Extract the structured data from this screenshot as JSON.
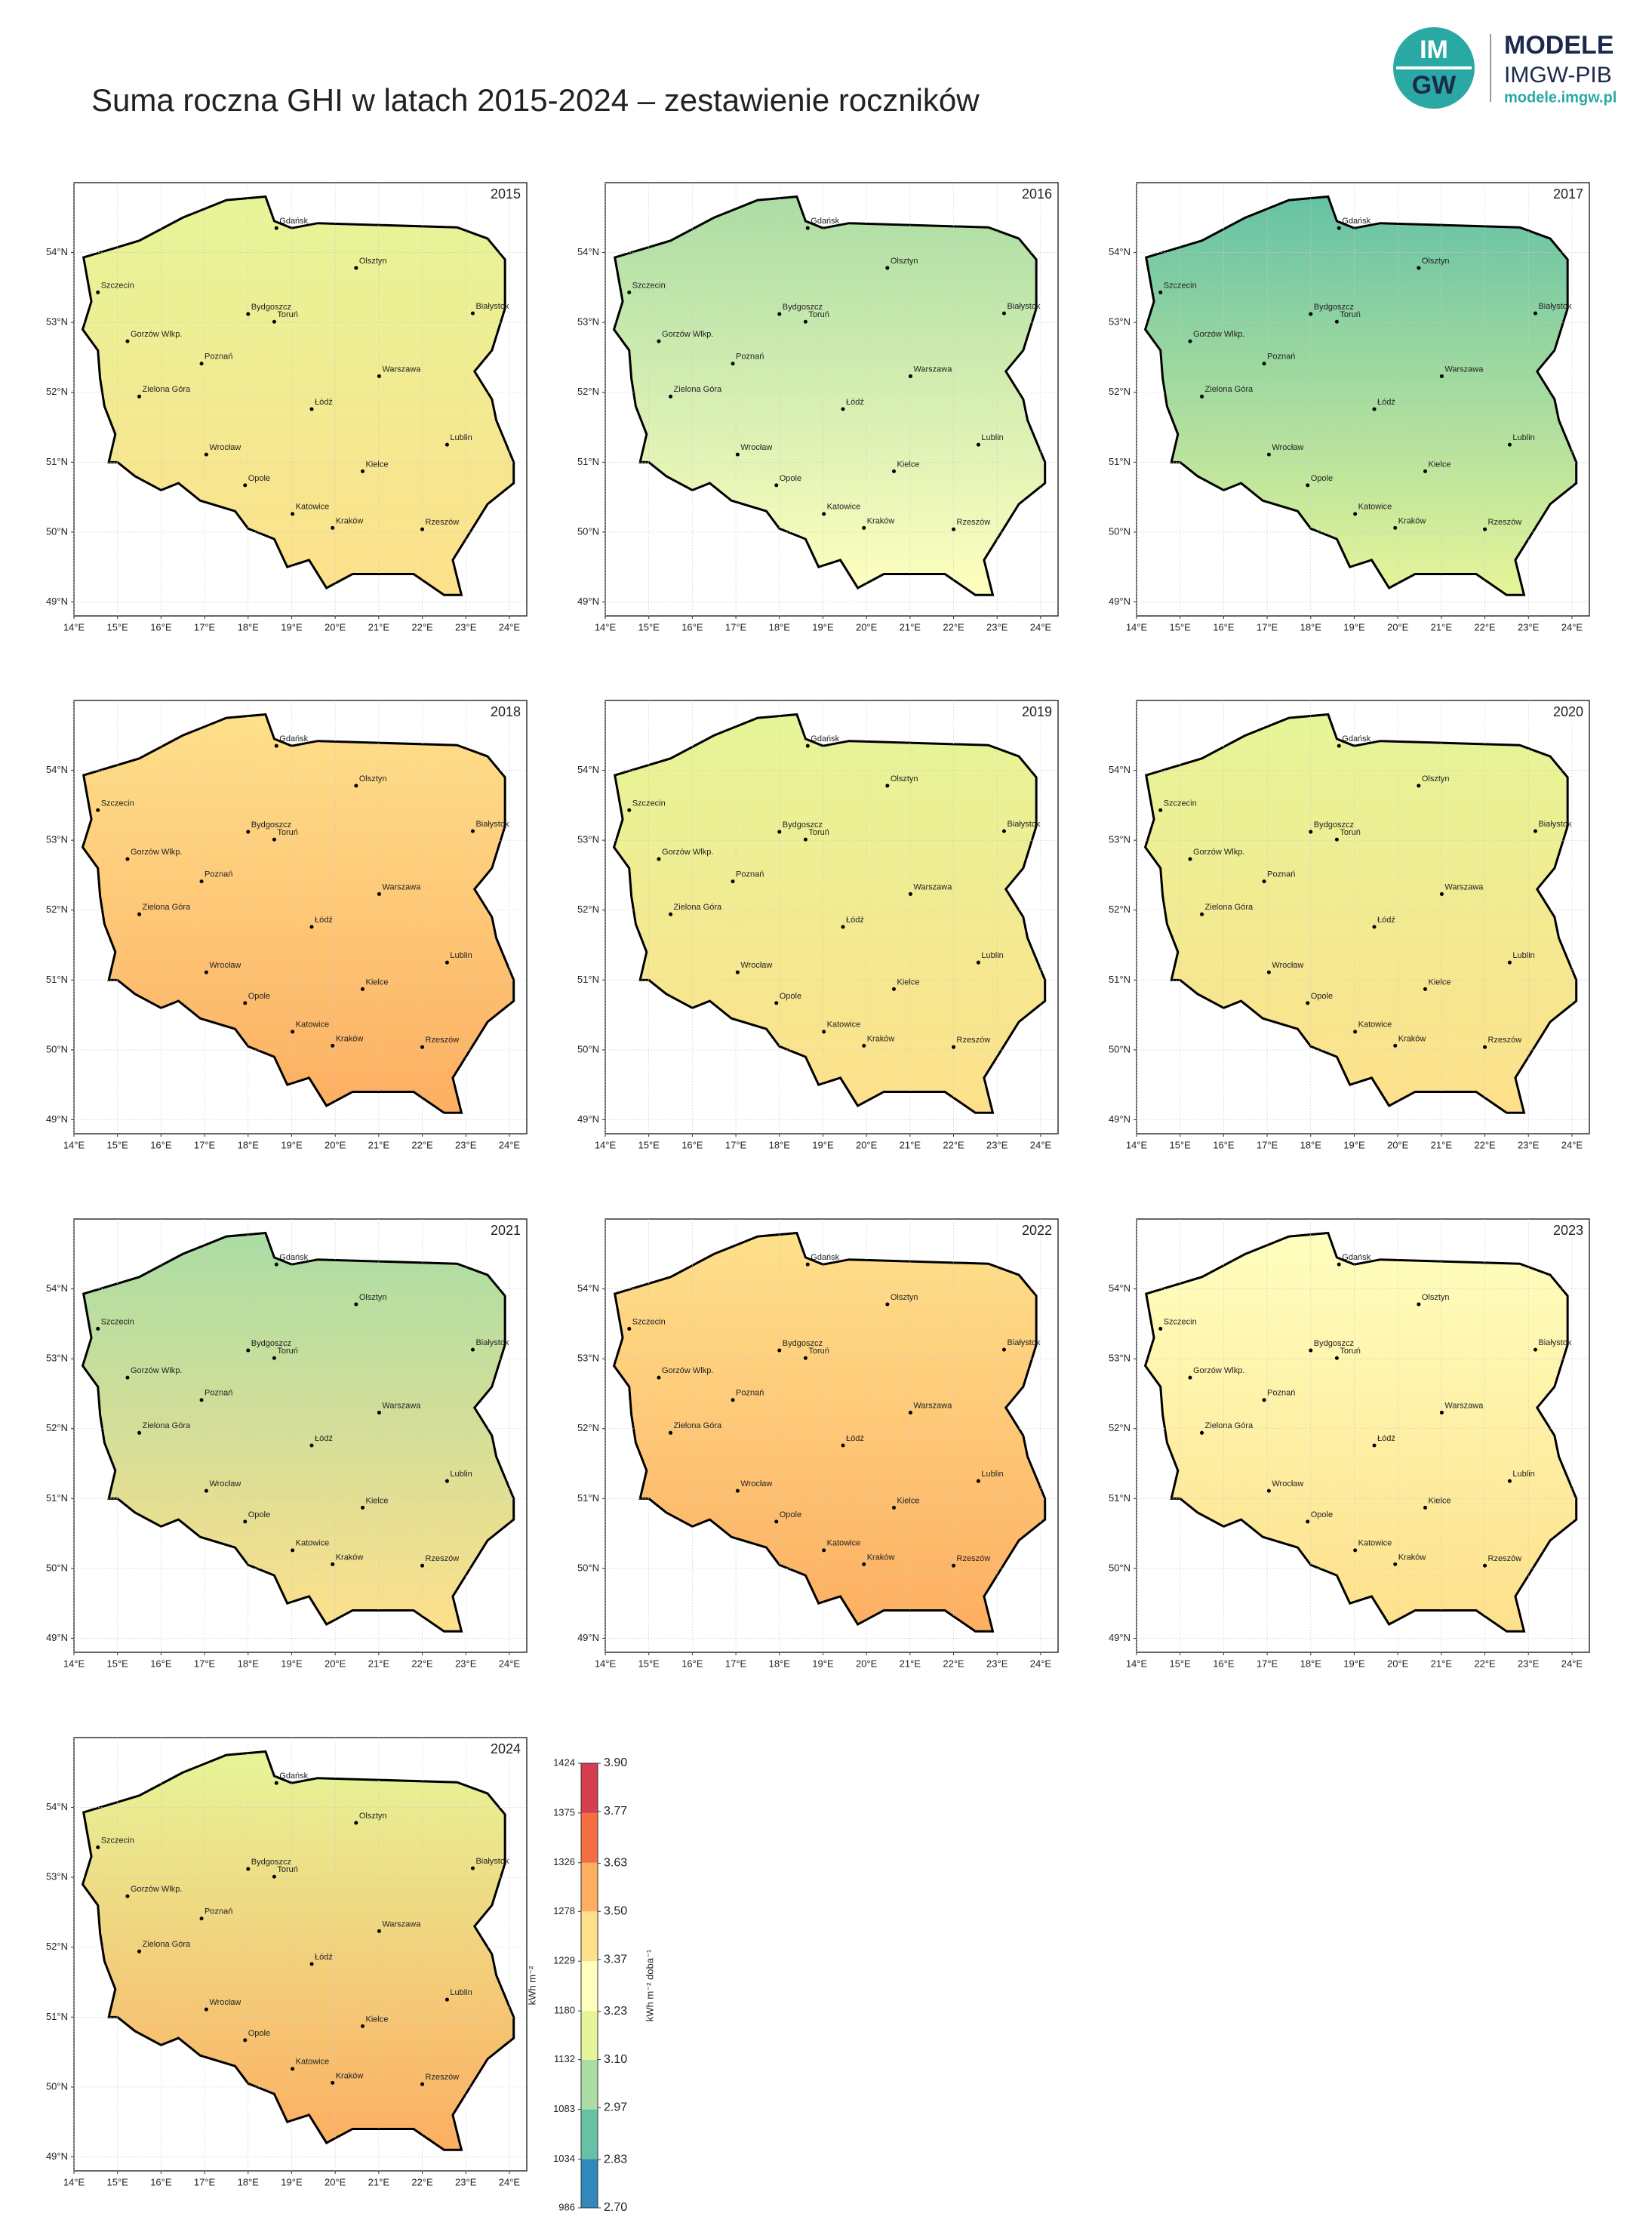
{
  "title": "Suma roczna GHI w latach 2015-2024 – zestawienie roczników",
  "logo": {
    "mark_top": "IM",
    "mark_bottom": "GW",
    "name": "MODELE",
    "org": "IMGW-PIB",
    "url": "modele.imgw.pl"
  },
  "axes": {
    "lon_lim": [
      14,
      24.4
    ],
    "lat_lim": [
      48.8,
      55.0
    ],
    "grid": true,
    "lon_ticks": [
      {
        "value": 14,
        "label": "14°E"
      },
      {
        "value": 15,
        "label": "15°E"
      },
      {
        "value": 16,
        "label": "16°E"
      },
      {
        "value": 17,
        "label": "17°E"
      },
      {
        "value": 18,
        "label": "18°E"
      },
      {
        "value": 19,
        "label": "19°E"
      },
      {
        "value": 20,
        "label": "20°E"
      },
      {
        "value": 21,
        "label": "21°E"
      },
      {
        "value": 22,
        "label": "22°E"
      },
      {
        "value": 23,
        "label": "23°E"
      },
      {
        "value": 24,
        "label": "24°E"
      }
    ],
    "lat_ticks": [
      {
        "value": 49,
        "label": "49°N"
      },
      {
        "value": 50,
        "label": "50°N"
      },
      {
        "value": 51,
        "label": "51°N"
      },
      {
        "value": 52,
        "label": "52°N"
      },
      {
        "value": 53,
        "label": "53°N"
      },
      {
        "value": 54,
        "label": "54°N"
      }
    ]
  },
  "cities": [
    "Gdańsk",
    "Olsztyn",
    "Szczecin",
    "Bydgoszcz",
    "Toruń",
    "Białystok",
    "Gorzów Wlkp.",
    "Poznań",
    "Warszawa",
    "Zielona Góra",
    "Łódź",
    "Lublin",
    "Wrocław",
    "Kielce",
    "Opole",
    "Katowice",
    "Kraków",
    "Rzeszów"
  ],
  "maps": [
    {
      "year": "2015",
      "colors": [
        "#e6f598",
        "#fee08b"
      ]
    },
    {
      "year": "2016",
      "colors": [
        "#abdda4",
        "#ffffbf"
      ]
    },
    {
      "year": "2017",
      "colors": [
        "#66c2a5",
        "#e6f598"
      ]
    },
    {
      "year": "2018",
      "colors": [
        "#fee08b",
        "#fdae61"
      ]
    },
    {
      "year": "2019",
      "colors": [
        "#e6f598",
        "#fee08b"
      ]
    },
    {
      "year": "2020",
      "colors": [
        "#e6f598",
        "#fee08b"
      ]
    },
    {
      "year": "2021",
      "colors": [
        "#abdda4",
        "#fee08b"
      ]
    },
    {
      "year": "2022",
      "colors": [
        "#fee08b",
        "#fdae61"
      ]
    },
    {
      "year": "2023",
      "colors": [
        "#ffffbf",
        "#fee08b"
      ]
    },
    {
      "year": "2024",
      "colors": [
        "#e6f598",
        "#fdae61"
      ]
    }
  ],
  "colorbar": {
    "label": "kWh m⁻²",
    "label2": "kWh m⁻² doba⁻¹",
    "ticks": [
      986,
      1034,
      1083,
      1132,
      1180,
      1229,
      1278,
      1326,
      1375,
      1424
    ],
    "ticks2": [
      {
        "value": 2.7,
        "label": "2.70"
      },
      {
        "value": 2.83,
        "label": "2.83"
      },
      {
        "value": 2.97,
        "label": "2.97"
      },
      {
        "value": 3.1,
        "label": "3.10"
      },
      {
        "value": 3.23,
        "label": "3.23"
      },
      {
        "value": 3.37,
        "label": "3.37"
      },
      {
        "value": 3.5,
        "label": "3.50"
      },
      {
        "value": 3.63,
        "label": "3.63"
      },
      {
        "value": 3.77,
        "label": "3.77"
      },
      {
        "value": 3.9,
        "label": "3.90"
      }
    ],
    "colors": [
      "#3288bd",
      "#66c2a5",
      "#abdda4",
      "#e6f598",
      "#ffffbf",
      "#fee08b",
      "#fdae61",
      "#f46d43",
      "#d53e4f"
    ]
  }
}
